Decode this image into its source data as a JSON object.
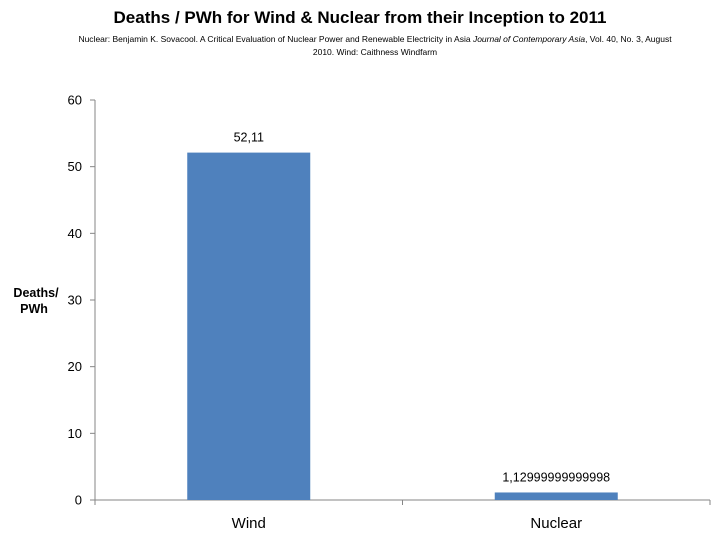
{
  "chart_data": {
    "type": "bar",
    "title": "Deaths / PWh for Wind & Nuclear from their Inception to 2011",
    "subtitle": {
      "part1": "Nuclear: Benjamin K. Sovacool. A Critical Evaluation of Nuclear Power and Renewable Electricity in Asia ",
      "journal": "Journal of Contemporary Asia",
      "part2": ", Vol. 40, No. 3, August 2010. Wind: Caithness Windfarm"
    },
    "categories": [
      "Wind",
      "Nuclear"
    ],
    "values": [
      52.11,
      1.13
    ],
    "data_labels": [
      "52,11",
      "1,12999999999998"
    ],
    "xlabel": "",
    "ylabel_line1": "Deaths/",
    "ylabel_line2": "PWh",
    "ylim": [
      0,
      60
    ],
    "yticks": [
      "0",
      "10",
      "20",
      "30",
      "40",
      "50",
      "60"
    ],
    "grid": false,
    "legend": "none",
    "bar_color": "#4f81bd"
  }
}
